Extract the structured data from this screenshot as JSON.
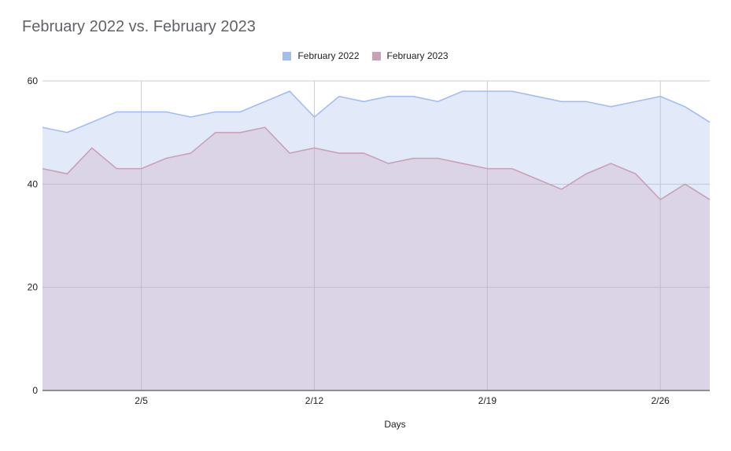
{
  "chart_data": {
    "type": "area",
    "title": "February 2022 vs. February 2023",
    "xlabel": "Days",
    "ylabel": "",
    "ylim": [
      0,
      60
    ],
    "yticks": [
      "0",
      "20",
      "40",
      "60"
    ],
    "xticks": [
      {
        "index": 4,
        "label": "2/5"
      },
      {
        "index": 11,
        "label": "2/12"
      },
      {
        "index": 18,
        "label": "2/19"
      },
      {
        "index": 25,
        "label": "2/26"
      }
    ],
    "x": [
      "2/1",
      "2/2",
      "2/3",
      "2/4",
      "2/5",
      "2/6",
      "2/7",
      "2/8",
      "2/9",
      "2/10",
      "2/11",
      "2/12",
      "2/13",
      "2/14",
      "2/15",
      "2/16",
      "2/17",
      "2/18",
      "2/19",
      "2/20",
      "2/21",
      "2/22",
      "2/23",
      "2/24",
      "2/25",
      "2/26",
      "2/27",
      "2/28"
    ],
    "series": [
      {
        "name": "February 2022",
        "color": "#a4bdf0",
        "values": [
          51,
          50,
          52,
          54,
          54,
          54,
          53,
          54,
          54,
          56,
          58,
          53,
          57,
          56,
          57,
          57,
          56,
          58,
          58,
          58,
          57,
          56,
          56,
          55,
          56,
          57,
          55,
          52
        ]
      },
      {
        "name": "February 2023",
        "color": "#c9a0b8",
        "values": [
          43,
          42,
          47,
          43,
          43,
          45,
          46,
          50,
          50,
          51,
          46,
          47,
          46,
          46,
          44,
          45,
          45,
          44,
          43,
          43,
          41,
          39,
          42,
          44,
          42,
          37,
          40,
          37
        ]
      }
    ],
    "legend_position": "top",
    "grid": true
  }
}
